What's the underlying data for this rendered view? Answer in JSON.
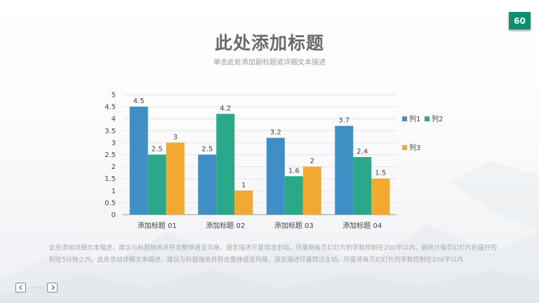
{
  "slide": {
    "page_number": "60",
    "title": "此处添加标题",
    "subtitle": "单击此处添加副标题或详细文本描述",
    "body_text": "此处添加详细文本描述，建议与标题相关并符合整体语言风格，语言描述尽量简洁生动。尽量将每页幻灯片的字数控制在200字以内，据统计每页幻灯片的最好控制在5分钟之内。此处添加详细文本描述，建议与标题相关并符合整体语言风格，语言描述尽量简洁生动。尽量将每页幻灯片的字数控制在200字以内"
  },
  "nav": {
    "prev_icon": "chevron-left-icon",
    "next_icon": "chevron-right-icon"
  },
  "colors": {
    "badge": "#0e8f6e",
    "series_1": "#3f8ec6",
    "series_2": "#2aa88a",
    "series_3": "#f2a930"
  },
  "chart_data": {
    "type": "bar",
    "categories": [
      "添加标题 01",
      "添加标题 02",
      "添加标题 03",
      "添加标题 04"
    ],
    "series": [
      {
        "name": "列1",
        "values": [
          4.5,
          2.5,
          3.2,
          3.7
        ],
        "color": "#3f8ec6"
      },
      {
        "name": "列2",
        "values": [
          2.5,
          4.2,
          1.6,
          2.4
        ],
        "color": "#2aa88a"
      },
      {
        "name": "列3",
        "values": [
          3,
          1,
          2,
          1.5
        ],
        "color": "#f2a930"
      }
    ],
    "title": "",
    "xlabel": "",
    "ylabel": "",
    "ylim": [
      0,
      5
    ],
    "yticks": [
      "0",
      "0.5",
      "1",
      "1.5",
      "2",
      "2.5",
      "3",
      "3.5",
      "4",
      "4.5",
      "5"
    ],
    "data_labels": true,
    "grid": true,
    "legend": "right"
  }
}
